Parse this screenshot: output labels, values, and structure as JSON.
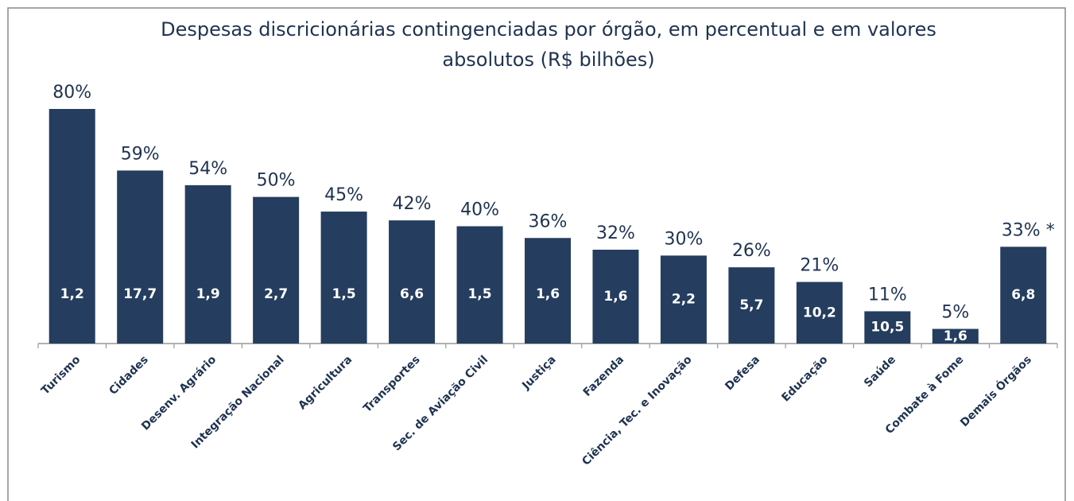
{
  "chart_data": {
    "type": "bar",
    "title": "Despesas discricionárias contingenciadas por órgão, em percentual e em valores absolutos (R$ bilhões)",
    "categories": [
      "Turismo",
      "Cidades",
      "Desenv. Agrário",
      "Integração Nacional",
      "Agricultura",
      "Transportes",
      "Sec. de Aviação Civil",
      "Justiça",
      "Fazenda",
      "Ciência, Tec. e Inovação",
      "Defesa",
      "Educação",
      "Saúde",
      "Combate à Fome",
      "Demais Órgãos"
    ],
    "values": [
      80,
      59,
      54,
      50,
      45,
      42,
      40,
      36,
      32,
      30,
      26,
      21,
      11,
      5,
      33
    ],
    "value_labels": [
      "80%",
      "59%",
      "54%",
      "50%",
      "45%",
      "42%",
      "40%",
      "36%",
      "32%",
      "30%",
      "26%",
      "21%",
      "11%",
      "5%",
      "33% *"
    ],
    "amounts": [
      1.2,
      17.7,
      1.9,
      2.7,
      1.5,
      6.6,
      1.5,
      1.6,
      1.6,
      2.2,
      5.7,
      10.2,
      10.5,
      1.6,
      6.8
    ],
    "amount_labels": [
      "1,2",
      "17,7",
      "1,9",
      "2,7",
      "1,5",
      "6,6",
      "1,5",
      "1,6",
      "1,6",
      "2,2",
      "5,7",
      "10,2",
      "10,5",
      "1,6",
      "6,8"
    ],
    "color": "#253d5e"
  }
}
